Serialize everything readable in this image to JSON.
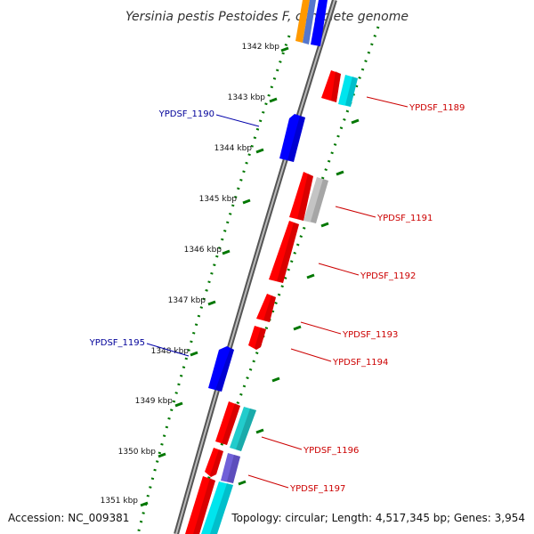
{
  "title": "Yersinia pestis Pestoides F, complete genome",
  "accession": "Accession: NC_009381",
  "topology": "Topology: circular; Length: 4,517,345 bp; Genes: 3,954",
  "colors": {
    "forward_gene": "#ff0000",
    "reverse_gene": "#0000ff",
    "other_feature": "#00cccc",
    "grey_feature": "#b8b8b8",
    "purple_feature": "#7060d8",
    "orange_feature": "#ff9900",
    "backbone": "#888888",
    "tick": "#007700",
    "forward_label": "#cc0000",
    "reverse_label": "#000099"
  },
  "ticks": [
    "1342 kbp",
    "1343 kbp",
    "1344 kbp",
    "1345 kbp",
    "1346 kbp",
    "1347 kbp",
    "1348 kbp",
    "1349 kbp",
    "1350 kbp",
    "1351 kbp"
  ],
  "labels": [
    {
      "text": "YPDSF_1189",
      "strand": "forward"
    },
    {
      "text": "YPDSF_1190",
      "strand": "reverse"
    },
    {
      "text": "YPDSF_1191",
      "strand": "forward"
    },
    {
      "text": "YPDSF_1192",
      "strand": "forward"
    },
    {
      "text": "YPDSF_1193",
      "strand": "forward"
    },
    {
      "text": "YPDSF_1194",
      "strand": "forward"
    },
    {
      "text": "YPDSF_1195",
      "strand": "reverse"
    },
    {
      "text": "YPDSF_1196",
      "strand": "forward"
    },
    {
      "text": "YPDSF_1197",
      "strand": "forward"
    }
  ]
}
